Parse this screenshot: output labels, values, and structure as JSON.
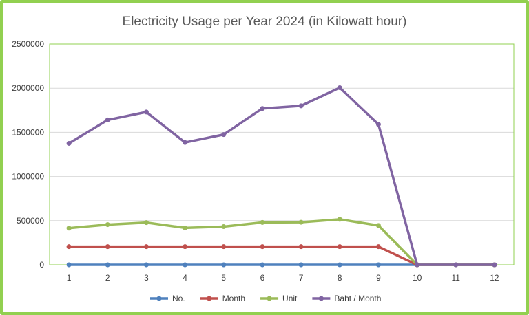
{
  "chart_data": {
    "type": "line",
    "title": "Electricity Usage per Year 2024 (in Kilowatt hour)",
    "xlabel": "",
    "ylabel": "",
    "x": [
      "1",
      "2",
      "3",
      "4",
      "5",
      "6",
      "7",
      "8",
      "9",
      "10",
      "11",
      "12"
    ],
    "ylim": [
      0,
      2500000
    ],
    "yticks": [
      "0",
      "500000",
      "1000000",
      "1500000",
      "2000000",
      "2500000"
    ],
    "grid": true,
    "legend": "bottom",
    "series": [
      {
        "name": "No.",
        "color": "#4f81bd",
        "values": [
          1,
          2,
          3,
          4,
          5,
          6,
          7,
          8,
          9,
          10,
          11,
          12
        ]
      },
      {
        "name": "Month",
        "color": "#c0504d",
        "values": [
          205000,
          205000,
          205000,
          205000,
          205000,
          205000,
          205000,
          205000,
          205000,
          0,
          0,
          0
        ]
      },
      {
        "name": "Unit",
        "color": "#9bbb59",
        "values": [
          415000,
          455000,
          478000,
          418000,
          432000,
          480000,
          482000,
          515000,
          445000,
          0,
          0,
          0
        ]
      },
      {
        "name": "Baht / Month",
        "color": "#8064a2",
        "values": [
          1375000,
          1640000,
          1730000,
          1385000,
          1475000,
          1770000,
          1800000,
          2005000,
          1590000,
          0,
          0,
          0
        ]
      }
    ]
  }
}
